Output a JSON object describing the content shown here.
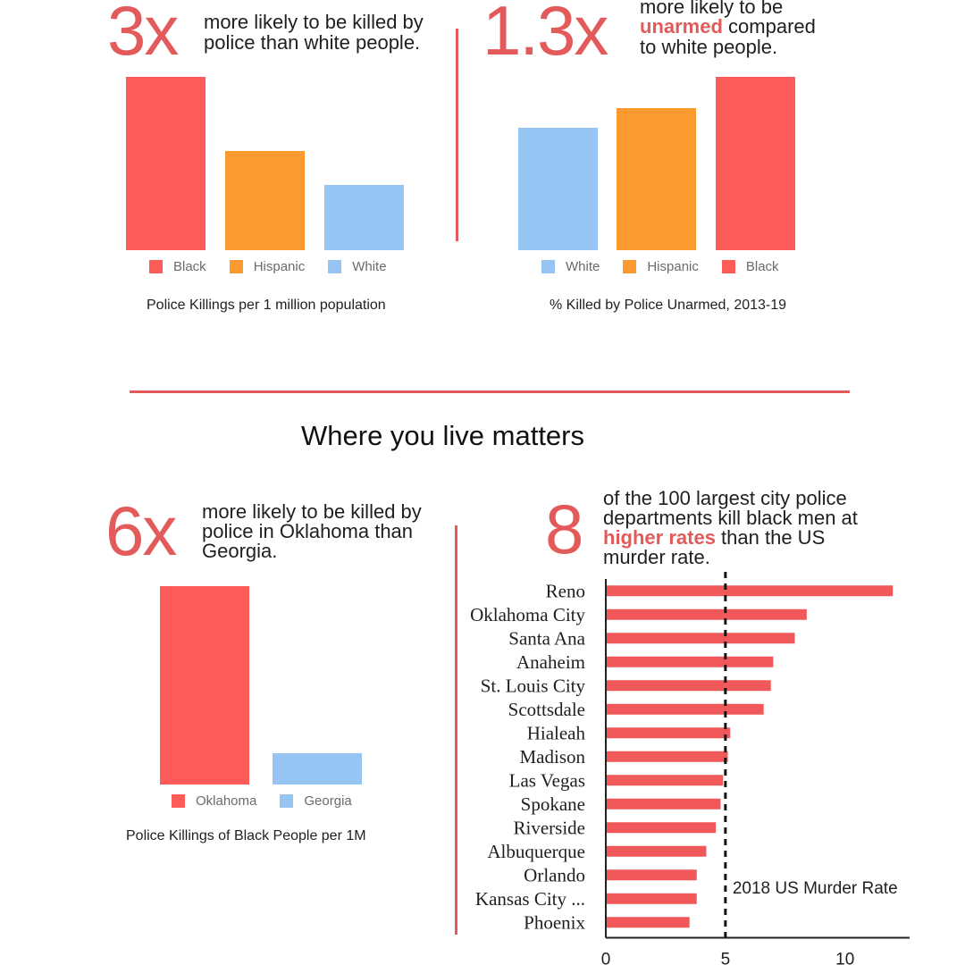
{
  "colors": {
    "black": "#fd5b59",
    "hispanic": "#fc9a30",
    "white": "#97c5f3",
    "accent": "#e25a5a",
    "oklahoma": "#fd5b59",
    "georgia": "#97c5f3",
    "city_bar": "#f0585a"
  },
  "stat1": {
    "value": "3x",
    "text_line1": "more likely to be killed by",
    "text_line2": "police than white people."
  },
  "stat2": {
    "value": "1.3x",
    "text_line1": "more likely to be",
    "text_hl": "unarmed",
    "text_line2_rest": " compared",
    "text_line3": "to white people."
  },
  "stat3": {
    "value": "6x",
    "text_line1": "more likely to be killed by",
    "text_line2": "police in Oklahoma than",
    "text_line3": "Georgia."
  },
  "stat4": {
    "value": "8",
    "text_line1": "of the 100 largest city police",
    "text_line2": "departments kill black men at",
    "text_hl": "higher rates",
    "text_line3_rest": " than the US",
    "text_line4": "murder rate."
  },
  "section_title": "Where you live matters",
  "chart_data": [
    {
      "type": "bar",
      "title": "Police Killings per 1 million population",
      "categories": [
        "Black",
        "Hispanic",
        "White"
      ],
      "values": [
        7.1,
        4.0,
        2.6
      ],
      "ylim": [
        0,
        7.1
      ],
      "legend": "bottom"
    },
    {
      "type": "bar",
      "title": "% Killed by Police Unarmed, 2013-19",
      "categories": [
        "White",
        "Hispanic",
        "Black"
      ],
      "values": [
        14,
        15.6,
        19
      ],
      "ylim": [
        0,
        19
      ],
      "legend": "bottom"
    },
    {
      "type": "bar",
      "title": "Police Killings of Black People per 1M",
      "categories": [
        "Oklahoma",
        "Georgia"
      ],
      "values": [
        12.6,
        2.0
      ],
      "ylim": [
        0,
        12.6
      ],
      "legend": "bottom"
    },
    {
      "type": "bar",
      "orientation": "horizontal",
      "categories": [
        "Reno",
        "Oklahoma City",
        "Santa Ana",
        "Anaheim",
        "St. Louis City",
        "Scottsdale",
        "Hialeah",
        "Madison",
        "Las Vegas",
        "Spokane",
        "Riverside",
        "Albuquerque",
        "Orlando",
        "Kansas City ...",
        "Phoenix"
      ],
      "values": [
        12.0,
        8.4,
        7.9,
        7.0,
        6.9,
        6.6,
        5.2,
        5.1,
        4.9,
        4.8,
        4.6,
        4.2,
        3.8,
        3.8,
        3.5
      ],
      "xlim": [
        0,
        12.7
      ],
      "xticks": [
        "0",
        "5",
        "10"
      ],
      "reference_line": {
        "value": 5.0,
        "label": "2018 US Murder Rate"
      }
    }
  ]
}
